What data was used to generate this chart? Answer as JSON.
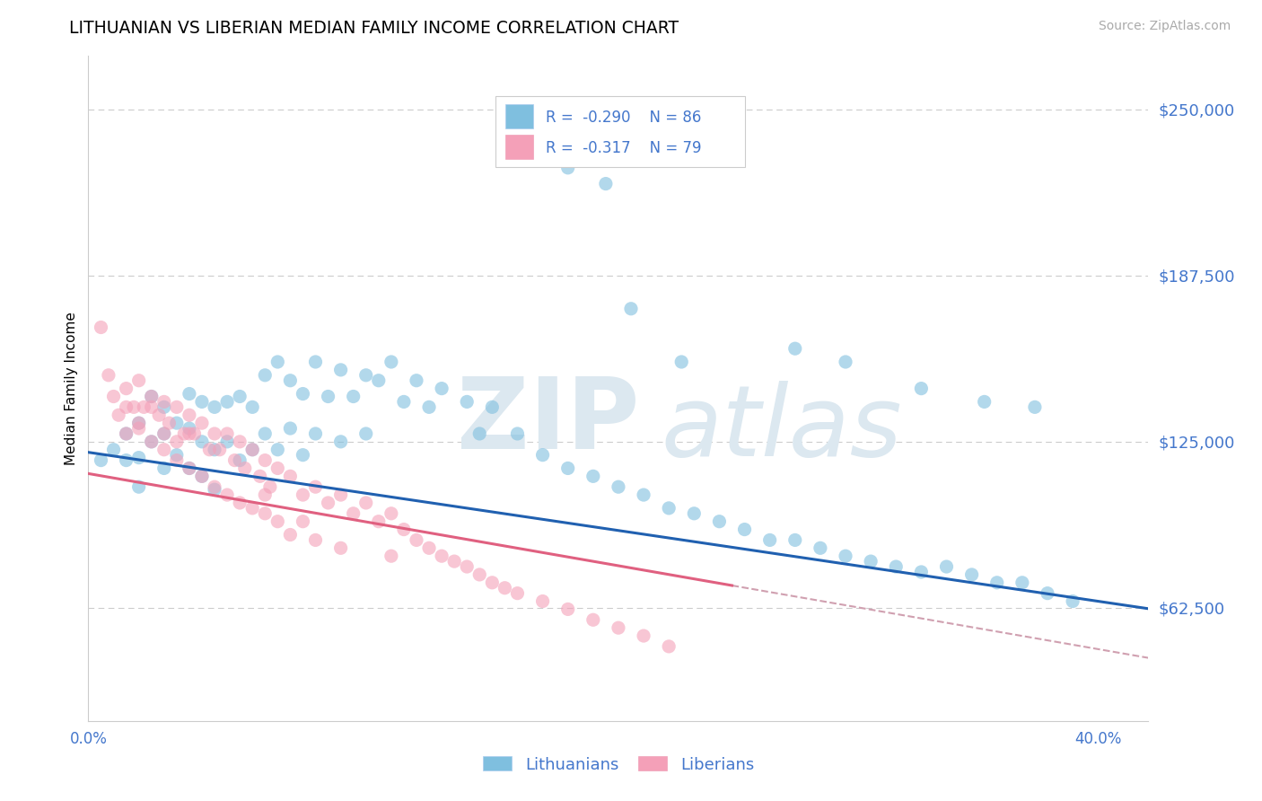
{
  "title": "LITHUANIAN VS LIBERIAN MEDIAN FAMILY INCOME CORRELATION CHART",
  "source": "Source: ZipAtlas.com",
  "ylabel": "Median Family Income",
  "xlim": [
    0.0,
    0.42
  ],
  "ylim": [
    20000,
    270000
  ],
  "yticks": [
    62500,
    125000,
    187500,
    250000
  ],
  "ytick_labels": [
    "$62,500",
    "$125,000",
    "$187,500",
    "$250,000"
  ],
  "xticks": [
    0.0,
    0.05,
    0.1,
    0.15,
    0.2,
    0.25,
    0.3,
    0.35,
    0.4
  ],
  "xtick_labels": [
    "0.0%",
    "",
    "",
    "",
    "",
    "",
    "",
    "",
    "40.0%"
  ],
  "grid_color": "#cccccc",
  "background_color": "#ffffff",
  "legend_blue_label": "Lithuanians",
  "legend_pink_label": "Liberians",
  "blue_R": -0.29,
  "blue_N": 86,
  "pink_R": -0.317,
  "pink_N": 79,
  "blue_color": "#7fbfdf",
  "pink_color": "#f4a0b8",
  "blue_line_color": "#2060b0",
  "pink_line_color": "#e06080",
  "dashed_line_color": "#d0a0b0",
  "tick_label_color": "#4477cc",
  "blue_scatter_x": [
    0.005,
    0.01,
    0.015,
    0.015,
    0.02,
    0.02,
    0.02,
    0.025,
    0.025,
    0.03,
    0.03,
    0.03,
    0.035,
    0.035,
    0.04,
    0.04,
    0.04,
    0.045,
    0.045,
    0.045,
    0.05,
    0.05,
    0.05,
    0.055,
    0.055,
    0.06,
    0.06,
    0.065,
    0.065,
    0.07,
    0.07,
    0.075,
    0.075,
    0.08,
    0.08,
    0.085,
    0.085,
    0.09,
    0.09,
    0.095,
    0.1,
    0.1,
    0.105,
    0.11,
    0.11,
    0.115,
    0.12,
    0.125,
    0.13,
    0.135,
    0.14,
    0.15,
    0.155,
    0.16,
    0.17,
    0.18,
    0.19,
    0.2,
    0.21,
    0.22,
    0.23,
    0.24,
    0.25,
    0.26,
    0.27,
    0.28,
    0.29,
    0.3,
    0.31,
    0.32,
    0.33,
    0.34,
    0.35,
    0.36,
    0.37,
    0.38,
    0.39,
    0.28,
    0.3,
    0.33,
    0.355,
    0.375,
    0.19,
    0.205,
    0.215,
    0.235
  ],
  "blue_scatter_y": [
    118000,
    122000,
    128000,
    118000,
    132000,
    119000,
    108000,
    142000,
    125000,
    138000,
    128000,
    115000,
    132000,
    120000,
    143000,
    130000,
    115000,
    140000,
    125000,
    112000,
    138000,
    122000,
    107000,
    140000,
    125000,
    142000,
    118000,
    138000,
    122000,
    150000,
    128000,
    155000,
    122000,
    148000,
    130000,
    143000,
    120000,
    155000,
    128000,
    142000,
    152000,
    125000,
    142000,
    150000,
    128000,
    148000,
    155000,
    140000,
    148000,
    138000,
    145000,
    140000,
    128000,
    138000,
    128000,
    120000,
    115000,
    112000,
    108000,
    105000,
    100000,
    98000,
    95000,
    92000,
    88000,
    88000,
    85000,
    82000,
    80000,
    78000,
    76000,
    78000,
    75000,
    72000,
    72000,
    68000,
    65000,
    160000,
    155000,
    145000,
    140000,
    138000,
    228000,
    222000,
    175000,
    155000
  ],
  "pink_scatter_x": [
    0.005,
    0.008,
    0.01,
    0.012,
    0.015,
    0.015,
    0.018,
    0.02,
    0.02,
    0.022,
    0.025,
    0.025,
    0.028,
    0.03,
    0.03,
    0.032,
    0.035,
    0.035,
    0.038,
    0.04,
    0.04,
    0.042,
    0.045,
    0.045,
    0.048,
    0.05,
    0.05,
    0.052,
    0.055,
    0.055,
    0.058,
    0.06,
    0.06,
    0.062,
    0.065,
    0.065,
    0.068,
    0.07,
    0.07,
    0.072,
    0.075,
    0.075,
    0.08,
    0.08,
    0.085,
    0.09,
    0.09,
    0.095,
    0.1,
    0.1,
    0.105,
    0.11,
    0.115,
    0.12,
    0.12,
    0.125,
    0.13,
    0.135,
    0.14,
    0.145,
    0.15,
    0.155,
    0.16,
    0.165,
    0.17,
    0.18,
    0.19,
    0.2,
    0.21,
    0.22,
    0.23,
    0.015,
    0.02,
    0.025,
    0.03,
    0.035,
    0.04,
    0.07,
    0.085
  ],
  "pink_scatter_y": [
    168000,
    150000,
    142000,
    135000,
    145000,
    128000,
    138000,
    148000,
    130000,
    138000,
    142000,
    125000,
    135000,
    140000,
    122000,
    132000,
    138000,
    118000,
    128000,
    135000,
    115000,
    128000,
    132000,
    112000,
    122000,
    128000,
    108000,
    122000,
    128000,
    105000,
    118000,
    125000,
    102000,
    115000,
    122000,
    100000,
    112000,
    118000,
    98000,
    108000,
    115000,
    95000,
    112000,
    90000,
    105000,
    108000,
    88000,
    102000,
    105000,
    85000,
    98000,
    102000,
    95000,
    98000,
    82000,
    92000,
    88000,
    85000,
    82000,
    80000,
    78000,
    75000,
    72000,
    70000,
    68000,
    65000,
    62000,
    58000,
    55000,
    52000,
    48000,
    138000,
    132000,
    138000,
    128000,
    125000,
    128000,
    105000,
    95000
  ]
}
